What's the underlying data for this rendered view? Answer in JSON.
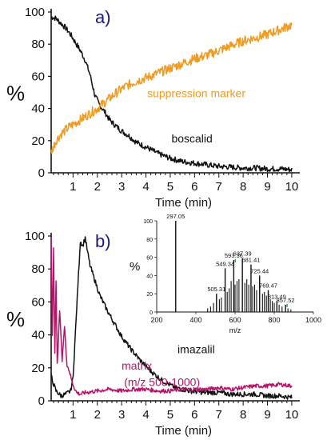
{
  "colors": {
    "black": "#111111",
    "orange": "#f29a1b",
    "magenta": "#b8126b",
    "navy": "#1c1c7a",
    "spectrum_marker": "#1ea33a"
  },
  "chart_data": [
    {
      "id": "a",
      "type": "line",
      "panel_label": "a)",
      "xlabel": "Time (min)",
      "ylabel": "%",
      "xlim": [
        0.1,
        10.2
      ],
      "ylim": [
        0,
        100
      ],
      "x_ticks": [
        1,
        2,
        3,
        4,
        5,
        6,
        7,
        8,
        9,
        10
      ],
      "y_ticks": [
        0,
        20,
        40,
        60,
        80,
        100
      ],
      "annotations": [
        {
          "text": "suppression marker",
          "series": "suppression marker",
          "x": 4.05,
          "y": 47
        },
        {
          "text": "boscalid",
          "series": "boscalid",
          "x": 5.05,
          "y": 19
        }
      ],
      "series": [
        {
          "name": "boscalid",
          "color": "#111111",
          "points": [
            [
              0.1,
              97
            ],
            [
              0.3,
              96
            ],
            [
              0.5,
              93
            ],
            [
              0.7,
              90
            ],
            [
              0.9,
              86
            ],
            [
              1.1,
              81
            ],
            [
              1.3,
              76
            ],
            [
              1.5,
              70
            ],
            [
              1.7,
              61
            ],
            [
              1.9,
              48
            ],
            [
              2.1,
              42
            ],
            [
              2.3,
              38
            ],
            [
              2.5,
              33
            ],
            [
              2.7,
              30
            ],
            [
              3.0,
              26
            ],
            [
              3.3,
              23
            ],
            [
              3.6,
              19
            ],
            [
              4.0,
              16
            ],
            [
              4.5,
              12
            ],
            [
              5.0,
              9
            ],
            [
              5.5,
              7
            ],
            [
              6.0,
              6
            ],
            [
              6.5,
              5
            ],
            [
              7.0,
              4
            ],
            [
              7.5,
              3.5
            ],
            [
              8.0,
              3
            ],
            [
              8.5,
              3
            ],
            [
              9.0,
              2.5
            ],
            [
              9.5,
              2.5
            ],
            [
              10.0,
              2
            ]
          ]
        },
        {
          "name": "suppression marker",
          "color": "#f29a1b",
          "points": [
            [
              0.1,
              13
            ],
            [
              0.3,
              20
            ],
            [
              0.5,
              24
            ],
            [
              0.8,
              28
            ],
            [
              1.0,
              30
            ],
            [
              1.3,
              33
            ],
            [
              1.6,
              36
            ],
            [
              2.0,
              40
            ],
            [
              2.4,
              45
            ],
            [
              2.8,
              50
            ],
            [
              3.2,
              54
            ],
            [
              3.6,
              57
            ],
            [
              4.0,
              59
            ],
            [
              4.5,
              62
            ],
            [
              5.0,
              65
            ],
            [
              5.5,
              68
            ],
            [
              6.0,
              71
            ],
            [
              6.5,
              73
            ],
            [
              7.0,
              76
            ],
            [
              7.5,
              79
            ],
            [
              8.0,
              82
            ],
            [
              8.5,
              84
            ],
            [
              9.0,
              86
            ],
            [
              9.5,
              89
            ],
            [
              10.0,
              92
            ]
          ]
        }
      ]
    },
    {
      "id": "b",
      "type": "line",
      "panel_label": "b)",
      "xlabel": "Time (min)",
      "ylabel": "%",
      "xlim": [
        0.1,
        10.2
      ],
      "ylim": [
        0,
        100
      ],
      "x_ticks": [
        1,
        2,
        3,
        4,
        5,
        6,
        7,
        8,
        9,
        10
      ],
      "y_ticks": [
        0,
        20,
        40,
        60,
        80,
        100
      ],
      "annotations": [
        {
          "text": "imazalil",
          "series": "imazalil",
          "x": 5.3,
          "y": 29
        },
        {
          "text": "matrix",
          "series": "matrix (m/z 500-1000)",
          "x": 3.0,
          "y": 19
        },
        {
          "text": "(m/z 500-1000)",
          "series": "matrix (m/z 500-1000)",
          "x": 3.1,
          "y": 9
        }
      ],
      "series": [
        {
          "name": "imazalil",
          "color": "#111111",
          "points": [
            [
              0.1,
              15
            ],
            [
              0.2,
              10
            ],
            [
              0.3,
              6
            ],
            [
              0.5,
              3
            ],
            [
              0.7,
              4
            ],
            [
              0.9,
              6
            ],
            [
              1.0,
              14
            ],
            [
              1.1,
              42
            ],
            [
              1.2,
              70
            ],
            [
              1.3,
              97
            ],
            [
              1.4,
              94
            ],
            [
              1.5,
              99
            ],
            [
              1.6,
              90
            ],
            [
              1.7,
              82
            ],
            [
              1.9,
              73
            ],
            [
              2.1,
              64
            ],
            [
              2.4,
              55
            ],
            [
              2.7,
              47
            ],
            [
              3.0,
              39
            ],
            [
              3.4,
              31
            ],
            [
              3.8,
              24
            ],
            [
              4.2,
              18
            ],
            [
              4.7,
              12
            ],
            [
              5.2,
              8
            ],
            [
              5.8,
              6
            ],
            [
              6.4,
              5
            ],
            [
              7.0,
              5
            ],
            [
              7.5,
              4
            ],
            [
              8.0,
              4
            ],
            [
              8.5,
              4
            ],
            [
              9.0,
              3
            ],
            [
              9.5,
              3
            ],
            [
              10.0,
              2
            ]
          ]
        },
        {
          "name": "matrix (m/z 500-1000)",
          "color": "#b8126b",
          "points": [
            [
              0.1,
              99
            ],
            [
              0.15,
              40
            ],
            [
              0.2,
              93
            ],
            [
              0.25,
              30
            ],
            [
              0.3,
              72
            ],
            [
              0.35,
              22
            ],
            [
              0.45,
              55
            ],
            [
              0.55,
              25
            ],
            [
              0.65,
              45
            ],
            [
              0.75,
              22
            ],
            [
              0.85,
              18
            ],
            [
              0.95,
              12
            ],
            [
              1.05,
              8
            ],
            [
              1.15,
              5
            ],
            [
              1.3,
              4
            ],
            [
              1.5,
              5
            ],
            [
              2.0,
              6
            ],
            [
              2.5,
              7
            ],
            [
              3.0,
              6
            ],
            [
              3.5,
              7
            ],
            [
              4.0,
              7
            ],
            [
              4.5,
              6
            ],
            [
              5.0,
              6
            ],
            [
              5.5,
              7
            ],
            [
              6.0,
              7
            ],
            [
              6.5,
              7
            ],
            [
              7.0,
              8
            ],
            [
              7.5,
              7
            ],
            [
              8.0,
              8
            ],
            [
              8.5,
              9
            ],
            [
              9.0,
              9
            ],
            [
              9.5,
              10
            ],
            [
              10.0,
              9
            ]
          ]
        }
      ],
      "inset": {
        "type": "bar",
        "ylabel": "%",
        "xlabel": "m/z",
        "xlim": [
          200,
          1000
        ],
        "ylim": [
          0,
          100
        ],
        "x_ticks": [
          200,
          400,
          600,
          800,
          1000
        ],
        "y_ticks": [
          0,
          20,
          40,
          60,
          80,
          100
        ],
        "peaks": [
          {
            "mz": 297.05,
            "intensity": 100,
            "label": "297.05"
          },
          {
            "mz": 505.31,
            "intensity": 20,
            "label": "505.31"
          },
          {
            "mz": 549.34,
            "intensity": 48,
            "label": "549.34"
          },
          {
            "mz": 593.36,
            "intensity": 57,
            "label": "593.36"
          },
          {
            "mz": 637.39,
            "intensity": 59,
            "label": "637.39"
          },
          {
            "mz": 681.41,
            "intensity": 52,
            "label": "681.41"
          },
          {
            "mz": 725.44,
            "intensity": 40,
            "label": "725.44"
          },
          {
            "mz": 769.47,
            "intensity": 24,
            "label": "769.47"
          },
          {
            "mz": 813.49,
            "intensity": 12,
            "label": "813.49"
          },
          {
            "mz": 857.52,
            "intensity": 8,
            "label": "857.52"
          }
        ],
        "minor_peaks": [
          [
            460,
            4
          ],
          [
            475,
            6
          ],
          [
            490,
            10
          ],
          [
            520,
            14
          ],
          [
            530,
            16
          ],
          [
            560,
            22
          ],
          [
            570,
            26
          ],
          [
            580,
            34
          ],
          [
            600,
            30
          ],
          [
            610,
            34
          ],
          [
            620,
            36
          ],
          [
            650,
            32
          ],
          [
            660,
            36
          ],
          [
            670,
            30
          ],
          [
            690,
            28
          ],
          [
            700,
            30
          ],
          [
            710,
            24
          ],
          [
            740,
            20
          ],
          [
            750,
            22
          ],
          [
            760,
            18
          ],
          [
            780,
            14
          ],
          [
            790,
            12
          ],
          [
            800,
            10
          ],
          [
            825,
            8
          ],
          [
            840,
            6
          ],
          [
            870,
            4
          ],
          [
            885,
            3
          ]
        ]
      }
    }
  ]
}
